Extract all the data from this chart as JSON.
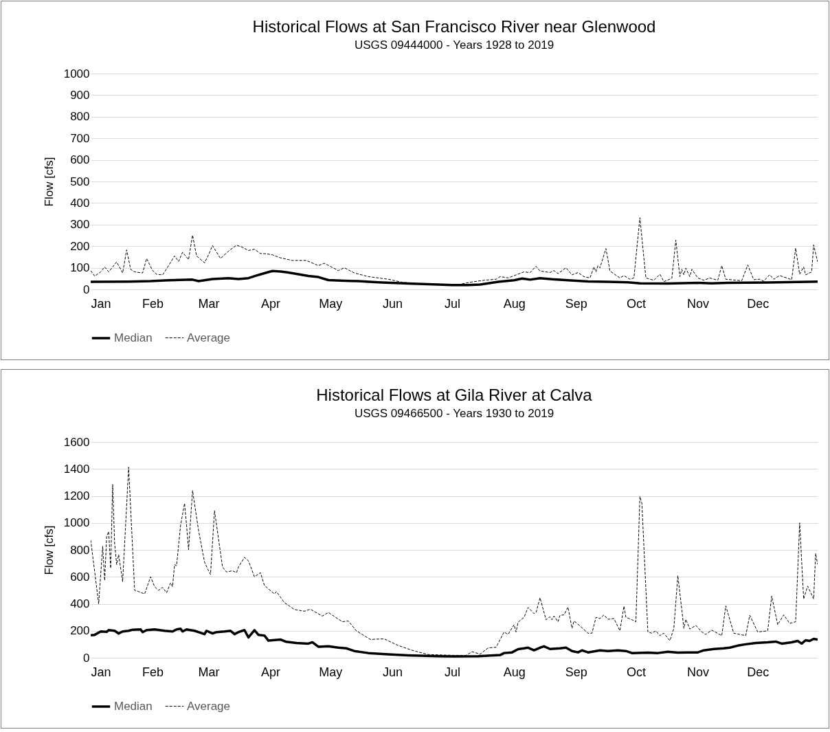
{
  "chart_data": [
    {
      "type": "line",
      "title": "Historical Flows at San Francisco River near Glenwood",
      "subtitle": "USGS 09444000 - Years 1928 to 2019",
      "ylabel": "Flow [cfs]",
      "xlim": [
        "--01-01",
        "--12-31"
      ],
      "xticks": [
        {
          "value": "--01-01",
          "label": "Jan"
        },
        {
          "value": "--02-01",
          "label": "Feb"
        },
        {
          "value": "--03-01",
          "label": "Mar"
        },
        {
          "value": "--04-01",
          "label": "Apr"
        },
        {
          "value": "--05-01",
          "label": "May"
        },
        {
          "value": "--06-01",
          "label": "Jun"
        },
        {
          "value": "--07-01",
          "label": "Jul"
        },
        {
          "value": "--08-01",
          "label": "Aug"
        },
        {
          "value": "--09-01",
          "label": "Sep"
        },
        {
          "value": "--10-01",
          "label": "Oct"
        },
        {
          "value": "--11-01",
          "label": "Nov"
        },
        {
          "value": "--12-01",
          "label": "Dec"
        }
      ],
      "ylim": [
        0,
        1000
      ],
      "yticks": [
        0,
        100,
        200,
        300,
        400,
        500,
        600,
        700,
        800,
        900,
        1000
      ],
      "grid": "y",
      "legend": "bottom",
      "series": [
        {
          "name": "Median",
          "color": "#000000",
          "line_style": "solid",
          "x": [
            "--01-01",
            "--01-20",
            "--01-31",
            "--02-09",
            "--02-21",
            "--02-24",
            "--03-03",
            "--03-11",
            "--03-16",
            "--03-21",
            "--03-25",
            "--03-29",
            "--04-02",
            "--04-06",
            "--04-10",
            "--04-15",
            "--04-20",
            "--04-25",
            "--04-30",
            "--05-08",
            "--05-15",
            "--05-25",
            "--06-09",
            "--06-24",
            "--07-01",
            "--07-09",
            "--07-15",
            "--07-24",
            "--08-01",
            "--08-05",
            "--08-09",
            "--08-14",
            "--08-20",
            "--08-28",
            "--09-07",
            "--09-17",
            "--09-27",
            "--10-03",
            "--10-17",
            "--11-01",
            "--11-08",
            "--11-16",
            "--12-06",
            "--12-31"
          ],
          "values": [
            35,
            36,
            38,
            42,
            45,
            38,
            48,
            52,
            48,
            52,
            64,
            75,
            85,
            83,
            78,
            70,
            62,
            57,
            43,
            40,
            38,
            33,
            27,
            22,
            20,
            20,
            22,
            35,
            42,
            50,
            45,
            52,
            47,
            42,
            37,
            35,
            33,
            28,
            27,
            30,
            28,
            30,
            32,
            36
          ]
        },
        {
          "name": "Average",
          "color": "#000000",
          "line_style": "dashed",
          "x": [
            "--01-01",
            "--01-03",
            "--01-06",
            "--01-08",
            "--01-10",
            "--01-12",
            "--01-14",
            "--01-17",
            "--01-19",
            "--01-21",
            "--01-23",
            "--01-27",
            "--01-29",
            "--02-01",
            "--02-03",
            "--02-06",
            "--02-09",
            "--02-11",
            "--02-12",
            "--02-14",
            "--02-16",
            "--02-19",
            "--02-21",
            "--02-23",
            "--02-27",
            "--03-01",
            "--03-03",
            "--03-07",
            "--03-11",
            "--03-15",
            "--03-18",
            "--03-21",
            "--03-24",
            "--03-27",
            "--03-30",
            "--04-02",
            "--04-06",
            "--04-12",
            "--04-19",
            "--04-25",
            "--04-28",
            "--05-05",
            "--05-08",
            "--05-13",
            "--05-20",
            "--05-30",
            "--06-06",
            "--06-16",
            "--06-26",
            "--07-02",
            "--07-12",
            "--07-17",
            "--07-23",
            "--07-25",
            "--07-29",
            "--08-02",
            "--08-06",
            "--08-09",
            "--08-12",
            "--08-14",
            "--08-19",
            "--08-21",
            "--08-23",
            "--08-27",
            "--08-30",
            "--09-02",
            "--09-05",
            "--09-08",
            "--09-10",
            "--09-11",
            "--09-12",
            "--09-13",
            "--09-16",
            "--09-18",
            "--09-23",
            "--09-25",
            "--09-28",
            "--09-30",
            "--10-03",
            "--10-06",
            "--10-10",
            "--10-13",
            "--10-15",
            "--10-19",
            "--10-21",
            "--10-23",
            "--10-24",
            "--10-25",
            "--10-26",
            "--10-28",
            "--10-29",
            "--11-01",
            "--11-04",
            "--11-07",
            "--11-11",
            "--11-13",
            "--11-15",
            "--11-23",
            "--11-26",
            "--11-29",
            "--12-02",
            "--12-04",
            "--12-07",
            "--12-09",
            "--12-12",
            "--12-18",
            "--12-20",
            "--12-22",
            "--12-24",
            "--12-25",
            "--12-28",
            "--12-29",
            "--12-31"
          ],
          "values": [
            87,
            61,
            81,
            104,
            81,
            104,
            127,
            76,
            183,
            93,
            81,
            76,
            143,
            87,
            70,
            67,
            110,
            140,
            155,
            129,
            172,
            138,
            251,
            155,
            123,
            160,
            203,
            143,
            177,
            205,
            195,
            180,
            186,
            166,
            165,
            160,
            146,
            134,
            134,
            110,
            121,
            87,
            100,
            76,
            59,
            47,
            33,
            25,
            20,
            19,
            36,
            42,
            47,
            59,
            53,
            67,
            81,
            78,
            107,
            85,
            78,
            87,
            73,
            100,
            67,
            78,
            59,
            53,
            104,
            81,
            110,
            100,
            189,
            85,
            53,
            64,
            47,
            53,
            332,
            53,
            42,
            70,
            36,
            51,
            228,
            59,
            93,
            67,
            98,
            59,
            93,
            53,
            42,
            53,
            42,
            110,
            47,
            40,
            113,
            45,
            47,
            38,
            68,
            47,
            64,
            45,
            191,
            70,
            104,
            67,
            81,
            206,
            127
          ]
        }
      ]
    },
    {
      "type": "line",
      "title": "Historical Flows at Gila River at Calva",
      "subtitle": "USGS 09466500 - Years 1930 to 2019",
      "ylabel": "Flow [cfs]",
      "xlim": [
        "--01-01",
        "--12-31"
      ],
      "xticks": [
        {
          "value": "--01-01",
          "label": "Jan"
        },
        {
          "value": "--02-01",
          "label": "Feb"
        },
        {
          "value": "--03-01",
          "label": "Mar"
        },
        {
          "value": "--04-01",
          "label": "Apr"
        },
        {
          "value": "--05-01",
          "label": "May"
        },
        {
          "value": "--06-01",
          "label": "Jun"
        },
        {
          "value": "--07-01",
          "label": "Jul"
        },
        {
          "value": "--08-01",
          "label": "Aug"
        },
        {
          "value": "--09-01",
          "label": "Sep"
        },
        {
          "value": "--10-01",
          "label": "Oct"
        },
        {
          "value": "--11-01",
          "label": "Nov"
        },
        {
          "value": "--12-01",
          "label": "Dec"
        }
      ],
      "ylim": [
        0,
        1600
      ],
      "yticks": [
        0,
        200,
        400,
        600,
        800,
        1000,
        1200,
        1400,
        1600
      ],
      "grid": "y",
      "legend": "bottom",
      "series": [
        {
          "name": "Median",
          "color": "#000000",
          "line_style": "solid",
          "x": [
            "--01-01",
            "--01-03",
            "--01-06",
            "--01-09",
            "--01-10",
            "--01-13",
            "--01-15",
            "--01-17",
            "--01-20",
            "--01-22",
            "--01-26",
            "--01-27",
            "--01-29",
            "--02-02",
            "--02-07",
            "--02-11",
            "--02-13",
            "--02-15",
            "--02-16",
            "--02-18",
            "--02-22",
            "--02-25",
            "--02-27",
            "--02-28",
            "--03-03",
            "--03-05",
            "--03-09",
            "--03-12",
            "--03-14",
            "--03-16",
            "--03-19",
            "--03-21",
            "--03-24",
            "--03-26",
            "--03-29",
            "--03-31",
            "--04-06",
            "--04-09",
            "--04-14",
            "--04-20",
            "--04-22",
            "--04-25",
            "--04-30",
            "--05-05",
            "--05-09",
            "--05-13",
            "--05-20",
            "--05-30",
            "--06-09",
            "--06-24",
            "--07-02",
            "--07-14",
            "--07-25",
            "--07-27",
            "--07-31",
            "--08-03",
            "--08-06",
            "--08-08",
            "--08-11",
            "--08-14",
            "--08-16",
            "--08-19",
            "--08-24",
            "--08-27",
            "--08-30",
            "--09-02",
            "--09-04",
            "--09-07",
            "--09-13",
            "--09-17",
            "--09-22",
            "--09-26",
            "--09-29",
            "--10-07",
            "--10-12",
            "--10-17",
            "--10-22",
            "--10-27",
            "--11-01",
            "--11-04",
            "--11-09",
            "--11-14",
            "--11-17",
            "--11-21",
            "--11-25",
            "--11-30",
            "--12-06",
            "--12-10",
            "--12-13",
            "--12-18",
            "--12-21",
            "--12-23",
            "--12-25",
            "--12-27",
            "--12-29",
            "--12-31"
          ],
          "values": [
            167,
            170,
            195,
            192,
            205,
            200,
            180,
            195,
            200,
            208,
            210,
            190,
            205,
            210,
            200,
            195,
            210,
            215,
            195,
            210,
            200,
            185,
            175,
            200,
            180,
            190,
            195,
            200,
            175,
            190,
            205,
            151,
            205,
            170,
            165,
            127,
            135,
            118,
            110,
            105,
            115,
            82,
            85,
            75,
            70,
            50,
            35,
            25,
            18,
            12,
            10,
            12,
            20,
            35,
            40,
            64,
            70,
            75,
            55,
            75,
            85,
            65,
            70,
            75,
            50,
            40,
            55,
            40,
            55,
            50,
            55,
            50,
            35,
            38,
            35,
            45,
            38,
            40,
            40,
            55,
            65,
            70,
            75,
            90,
            100,
            110,
            115,
            120,
            105,
            115,
            125,
            105,
            130,
            125,
            140,
            135
          ]
        },
        {
          "name": "Average",
          "color": "#000000",
          "line_style": "dashed",
          "x": [
            "--01-01",
            "--01-05",
            "--01-07",
            "--01-08",
            "--01-09",
            "--01-10",
            "--01-11",
            "--01-12",
            "--01-13",
            "--01-14",
            "--01-15",
            "--01-17",
            "--01-20",
            "--01-23",
            "--01-25",
            "--01-28",
            "--01-31",
            "--02-02",
            "--02-04",
            "--02-06",
            "--02-08",
            "--02-10",
            "--02-11",
            "--02-12",
            "--02-13",
            "--02-15",
            "--02-17",
            "--02-18",
            "--02-19",
            "--02-21",
            "--02-24",
            "--02-27",
            "--03-01",
            "--03-02",
            "--03-04",
            "--03-08",
            "--03-10",
            "--03-13",
            "--03-15",
            "--03-16",
            "--03-19",
            "--03-21",
            "--03-24",
            "--03-27",
            "--03-29",
            "--04-03",
            "--04-04",
            "--04-08",
            "--04-13",
            "--04-18",
            "--04-21",
            "--04-27",
            "--04-30",
            "--05-07",
            "--05-10",
            "--05-14",
            "--05-21",
            "--05-28",
            "--06-04",
            "--06-11",
            "--06-19",
            "--07-02",
            "--07-08",
            "--07-11",
            "--07-15",
            "--07-19",
            "--07-23",
            "--07-27",
            "--07-29",
            "--08-01",
            "--08-02",
            "--08-03",
            "--08-06",
            "--08-08",
            "--08-11",
            "--08-12",
            "--08-14",
            "--08-17",
            "--08-19",
            "--08-20",
            "--08-21",
            "--08-23",
            "--08-24",
            "--08-26",
            "--08-28",
            "--08-30",
            "--08-31",
            "--09-03",
            "--09-07",
            "--09-09",
            "--09-11",
            "--09-13",
            "--09-15",
            "--09-17",
            "--09-20",
            "--09-23",
            "--09-25",
            "--09-26",
            "--09-29",
            "--10-01",
            "--10-03",
            "--10-04",
            "--10-07",
            "--10-09",
            "--10-11",
            "--10-13",
            "--10-15",
            "--10-18",
            "--10-20",
            "--10-22",
            "--10-24",
            "--10-25",
            "--10-26",
            "--10-28",
            "--10-31",
            "--11-03",
            "--11-05",
            "--11-08",
            "--11-13",
            "--11-15",
            "--11-19",
            "--11-22",
            "--11-25",
            "--11-27",
            "--12-01",
            "--12-06",
            "--12-08",
            "--12-11",
            "--12-14",
            "--12-17",
            "--12-20",
            "--12-22",
            "--12-24",
            "--12-26",
            "--12-29",
            "--12-30",
            "--12-31"
          ],
          "values": [
            873,
            400,
            827,
            573,
            900,
            936,
            664,
            1285,
            845,
            691,
            764,
            564,
            1413,
            500,
            491,
            473,
            600,
            527,
            500,
            522,
            482,
            555,
            527,
            691,
            682,
            982,
            1145,
            982,
            800,
            1240,
            945,
            709,
            645,
            618,
            1091,
            673,
            636,
            645,
            631,
            673,
            745,
            718,
            600,
            631,
            536,
            473,
            491,
            409,
            358,
            345,
            360,
            309,
            336,
            267,
            273,
            200,
            136,
            140,
            91,
            55,
            24,
            18,
            18,
            45,
            27,
            73,
            78,
            191,
            173,
            245,
            191,
            264,
            300,
            373,
            327,
            336,
            445,
            282,
            304,
            282,
            309,
            267,
            315,
            318,
            376,
            218,
            273,
            236,
            182,
            182,
            300,
            291,
            318,
            285,
            291,
            200,
            382,
            300,
            282,
            267,
            1195,
            1145,
            191,
            182,
            200,
            164,
            182,
            127,
            218,
            609,
            355,
            218,
            285,
            213,
            240,
            191,
            173,
            205,
            164,
            385,
            182,
            173,
            164,
            315,
            191,
            200,
            458,
            245,
            318,
            255,
            267,
            1000,
            436,
            531,
            436,
            773,
            691
          ]
        }
      ]
    }
  ]
}
